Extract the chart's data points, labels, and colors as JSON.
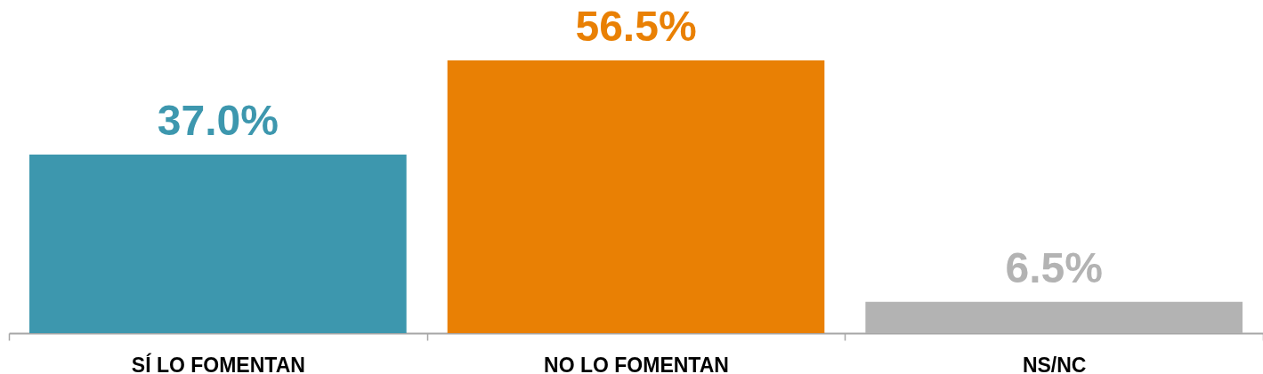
{
  "chart_data": {
    "type": "bar",
    "categories": [
      "SÍ LO FOMENTAN",
      "NO LO FOMENTAN",
      "NS/NC"
    ],
    "values": [
      37.0,
      56.5,
      6.5
    ],
    "colors": [
      "#3d97ae",
      "#e98004",
      "#b3b3b3"
    ],
    "value_labels": [
      "37.0%",
      "56.5%",
      "6.5%"
    ]
  }
}
